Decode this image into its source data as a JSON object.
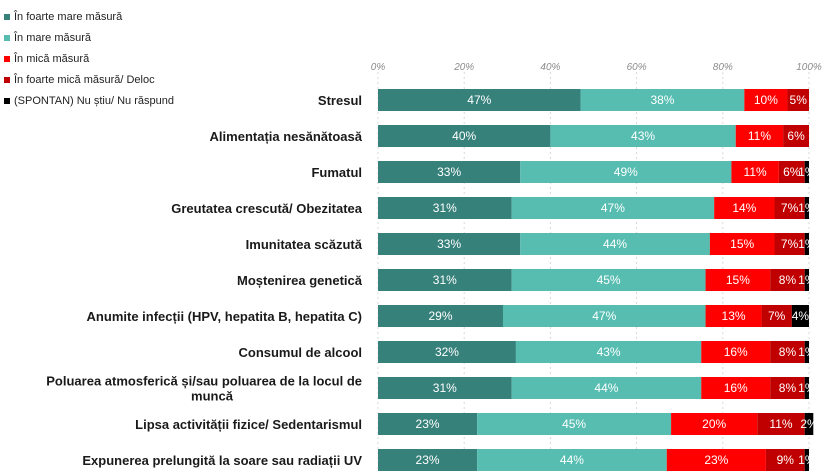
{
  "chart_data": {
    "type": "bar",
    "orientation": "horizontal",
    "stacked": true,
    "legend_position": "top-left",
    "grid": true,
    "xlim": [
      0,
      100
    ],
    "x_ticks": [
      "0%",
      "20%",
      "40%",
      "60%",
      "80%",
      "100%"
    ],
    "categories": [
      "Stresul",
      "Alimentația nesănătoasă",
      "Fumatul",
      "Greutatea crescută/ Obezitatea",
      "Imunitatea scăzută",
      "Moștenirea genetică",
      "Anumite infecții (HPV, hepatita B, hepatita C)",
      "Consumul de alcool",
      "Poluarea atmosferică și/sau poluarea de la locul de muncă",
      "Lipsa activității fizice/ Sedentarismul",
      "Expunerea prelungită la soare sau radiații UV"
    ],
    "category_lines": [
      [
        "Stresul"
      ],
      [
        "Alimentația nesănătoasă"
      ],
      [
        "Fumatul"
      ],
      [
        "Greutatea crescută/ Obezitatea"
      ],
      [
        "Imunitatea scăzută"
      ],
      [
        "Moștenirea genetică"
      ],
      [
        "Anumite infecții (HPV, hepatita B, hepatita C)"
      ],
      [
        "Consumul de alcool"
      ],
      [
        "Poluarea atmosferică și/sau poluarea de la locul de",
        "muncă"
      ],
      [
        "Lipsa activității fizice/ Sedentarismul"
      ],
      [
        "Expunerea prelungită la soare sau radiații UV"
      ]
    ],
    "series": [
      {
        "name": "În foarte mare măsură",
        "color": "#37817b",
        "values": [
          47,
          40,
          33,
          31,
          33,
          31,
          29,
          32,
          31,
          23,
          23
        ]
      },
      {
        "name": "În mare măsură",
        "color": "#57bdb1",
        "values": [
          38,
          43,
          49,
          47,
          44,
          45,
          47,
          43,
          44,
          45,
          44
        ]
      },
      {
        "name": "În mică măsură",
        "color": "#ff0000",
        "values": [
          10,
          11,
          11,
          14,
          15,
          15,
          13,
          16,
          16,
          20,
          23
        ]
      },
      {
        "name": "În foarte mică măsură/ Deloc",
        "color": "#c00000",
        "values": [
          5,
          6,
          6,
          7,
          7,
          8,
          7,
          8,
          8,
          11,
          9
        ]
      },
      {
        "name": "(SPONTAN) Nu știu/ Nu răspund",
        "color": "#000000",
        "values": [
          null,
          null,
          1,
          1,
          1,
          1,
          4,
          1,
          1,
          2,
          1
        ]
      }
    ]
  }
}
